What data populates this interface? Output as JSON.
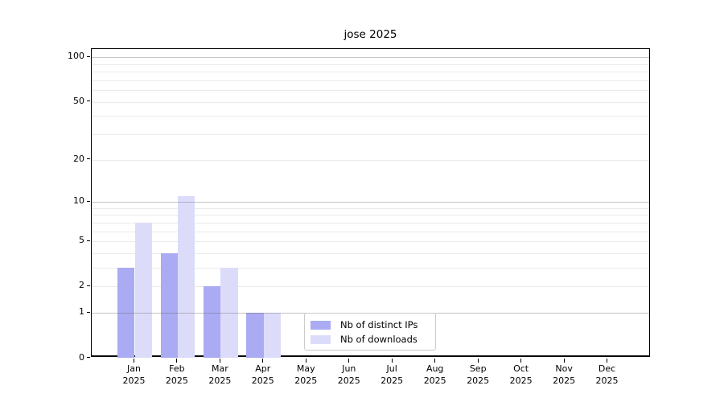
{
  "chart_data": {
    "type": "bar",
    "title": "jose 2025",
    "categories": [
      "Jan",
      "Feb",
      "Mar",
      "Apr",
      "May",
      "Jun",
      "Jul",
      "Aug",
      "Sep",
      "Oct",
      "Nov",
      "Dec"
    ],
    "x_year_line": "2025",
    "series": [
      {
        "name": "Nb of distinct IPs",
        "color": "#aaabf2",
        "values": [
          3,
          4,
          2,
          1,
          0,
          0,
          0,
          0,
          0,
          0,
          0,
          0
        ]
      },
      {
        "name": "Nb of downloads",
        "color": "#dcdcfa",
        "values": [
          7,
          11,
          3,
          1,
          0,
          0,
          0,
          0,
          0,
          0,
          0,
          0
        ]
      }
    ],
    "y_axis": {
      "scale": "log1p",
      "tick_labels": [
        0,
        1,
        2,
        5,
        10,
        20,
        50,
        100
      ],
      "major_grid_values": [
        1,
        10,
        100
      ],
      "minor_grid_values": [
        2,
        3,
        4,
        5,
        6,
        7,
        8,
        9,
        20,
        30,
        40,
        50,
        60,
        70,
        80,
        90
      ],
      "ylim": [
        0,
        113
      ]
    },
    "legend": {
      "position": "lower-center",
      "entries": [
        "Nb of distinct IPs",
        "Nb of downloads"
      ]
    },
    "grid": "on",
    "xlabel": "",
    "ylabel": ""
  }
}
